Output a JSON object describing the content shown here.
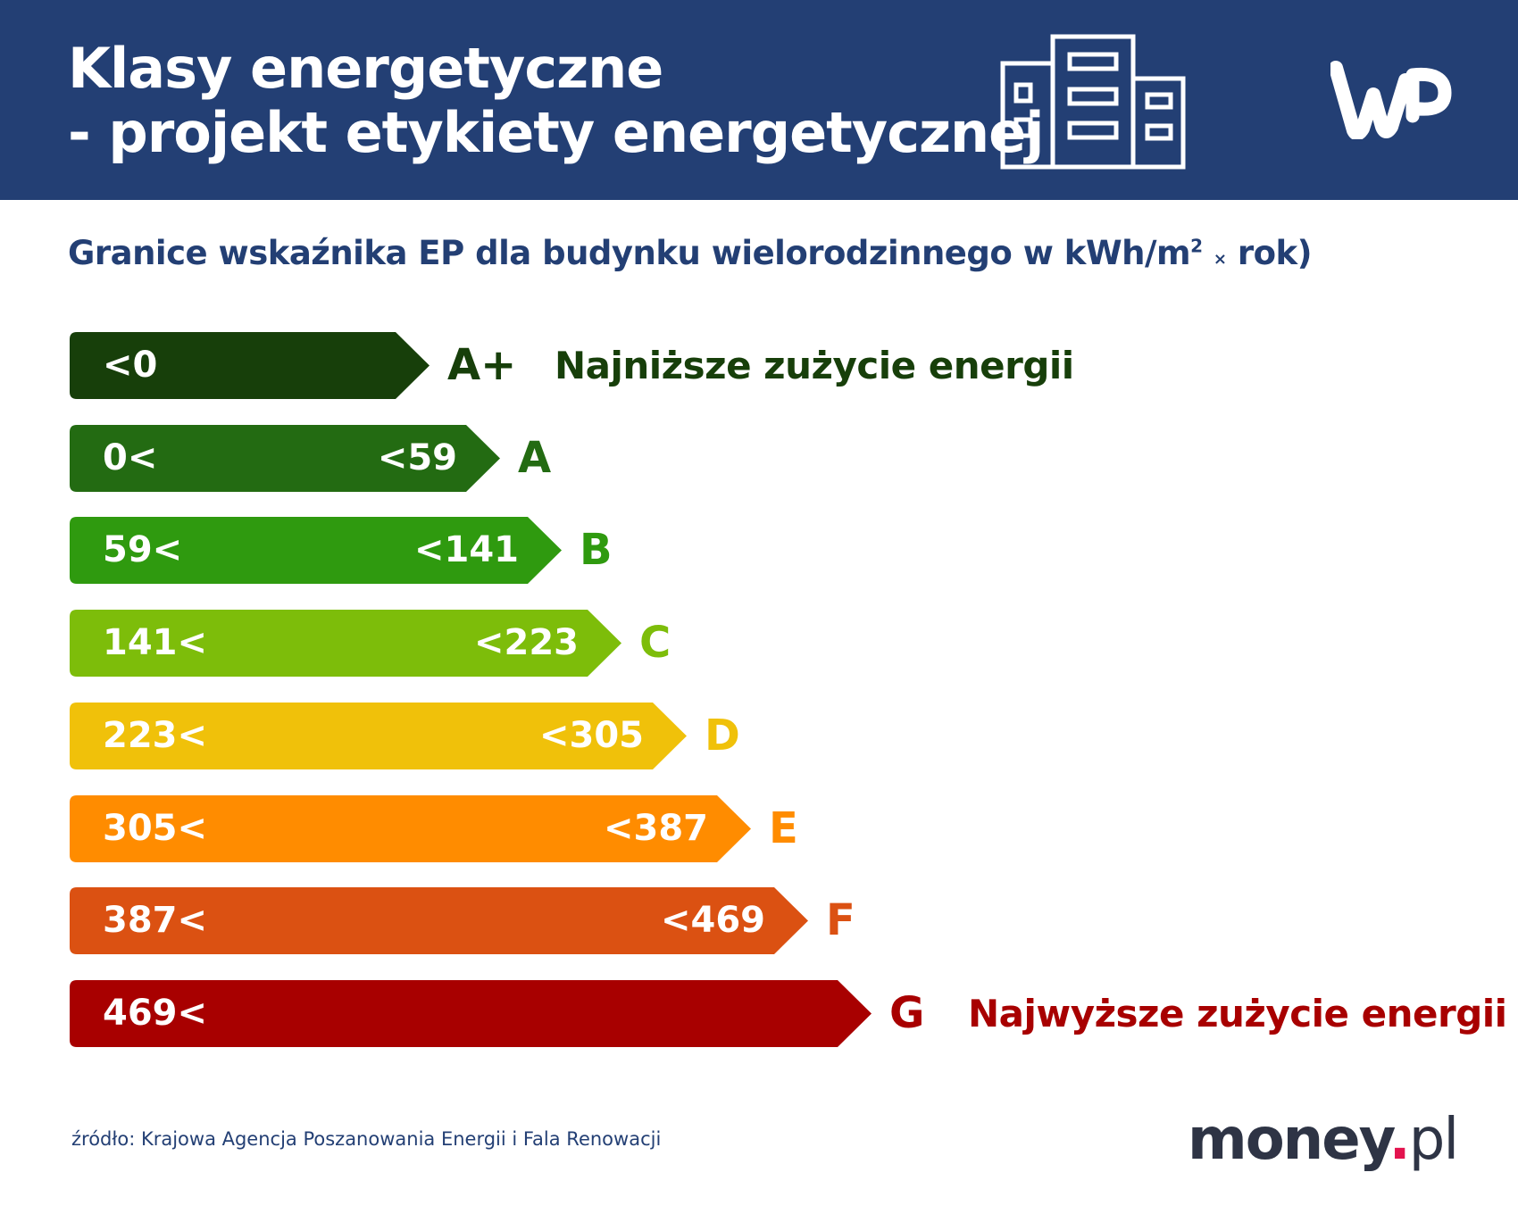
{
  "header": {
    "title_line1": "Klasy energetyczne",
    "title_line2": "- projekt etykiety energetycznej",
    "background_color": "#233f74",
    "icons": [
      "building-icon",
      "wp-logo"
    ]
  },
  "subtitle": {
    "main": "Granice wskaźnika EP dla budynku wielorodzinnego w kWh/m",
    "sup": "2",
    "times": "×",
    "tail": "rok)"
  },
  "classes": [
    {
      "class": "A+",
      "low": "<0",
      "high": "",
      "color": "#173f0a",
      "description": "Najniższe zużycie energii"
    },
    {
      "class": "A",
      "low": "0<",
      "high": "<59",
      "color": "#236b12"
    },
    {
      "class": "B",
      "low": "59<",
      "high": "<141",
      "color": "#2f9a0f"
    },
    {
      "class": "C",
      "low": "141<",
      "high": "<223",
      "color": "#7dbd0a"
    },
    {
      "class": "D",
      "low": "223<",
      "high": "<305",
      "color": "#f0c10a"
    },
    {
      "class": "E",
      "low": "305<",
      "high": "<387",
      "color": "#ff8c00"
    },
    {
      "class": "F",
      "low": "387<",
      "high": "<469",
      "color": "#db5112"
    },
    {
      "class": "G",
      "low": "469<",
      "high": "",
      "color": "#a80000",
      "description": "Najwyższe zużycie energii"
    }
  ],
  "footer": {
    "source": "źródło: Krajowa Agencja Poszanowania Energii i Fala Renowacji",
    "logo_main": "money",
    "logo_dot": ".",
    "logo_suffix": "pl"
  }
}
